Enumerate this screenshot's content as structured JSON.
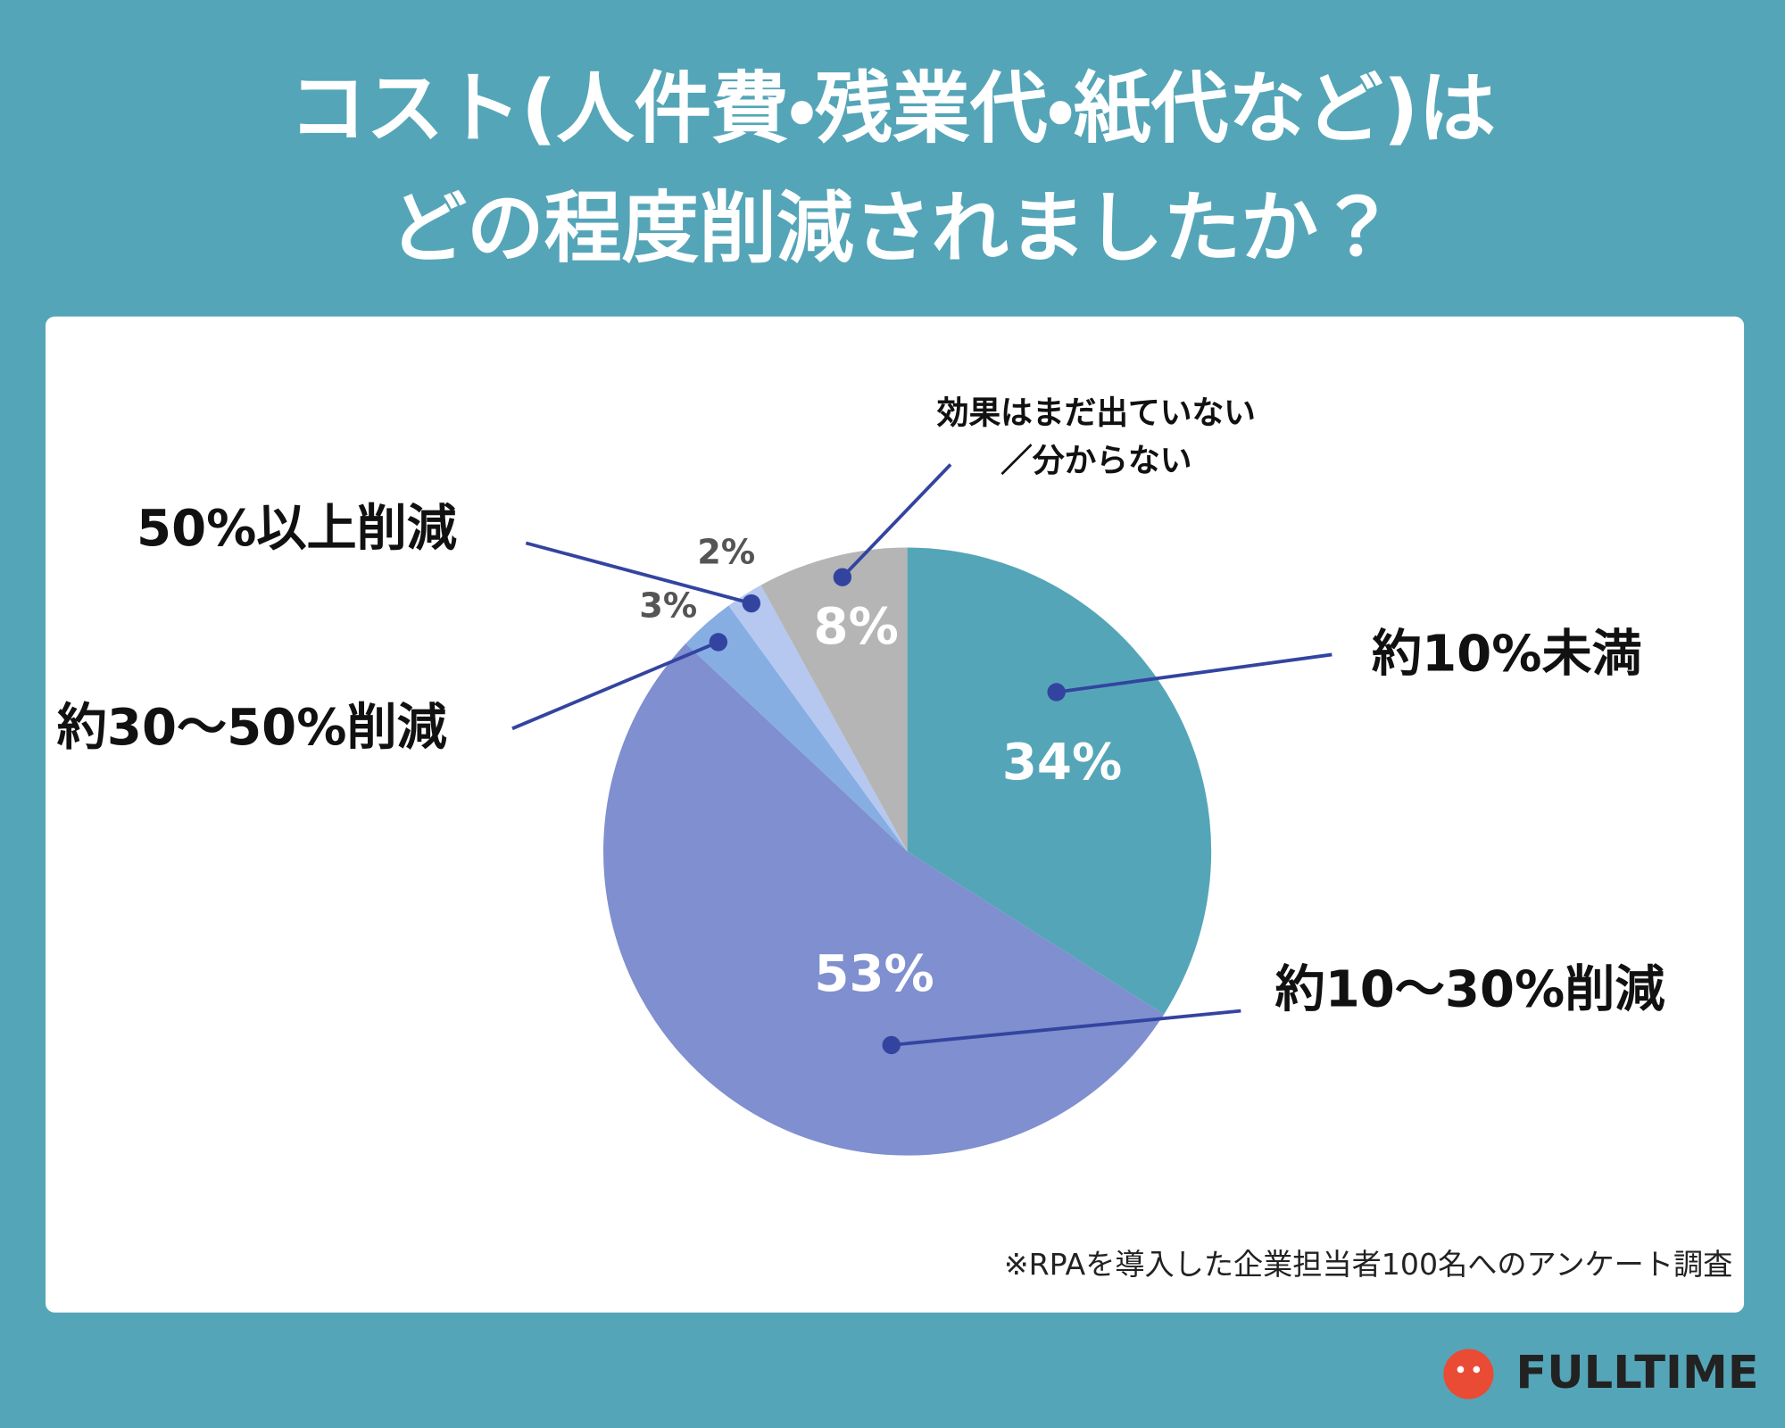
{
  "chart_data": {
    "type": "pie",
    "title": [
      "コスト(人件費・残業代・紙代など)は",
      "どの程度削減されましたか？"
    ],
    "categories": [
      "約10%未満",
      "約10〜30%削減",
      "約30〜50%削減",
      "50%以上削減",
      "効果はまだ出ていない／分からない"
    ],
    "values": [
      34,
      53,
      3,
      2,
      8
    ],
    "value_labels": [
      "34%",
      "53%",
      "3%",
      "2%",
      "8%"
    ],
    "colors": [
      "#55a5b8",
      "#7f8fcf",
      "#86aee3",
      "#b6c8ef",
      "#b5b5b5"
    ],
    "value_label_colors": [
      "#ffffff",
      "#ffffff",
      "#555555",
      "#555555",
      "#ffffff"
    ],
    "note": "※RPAを導入した企業担当者100名へのアンケート調査",
    "logo": "FULLTIME"
  }
}
